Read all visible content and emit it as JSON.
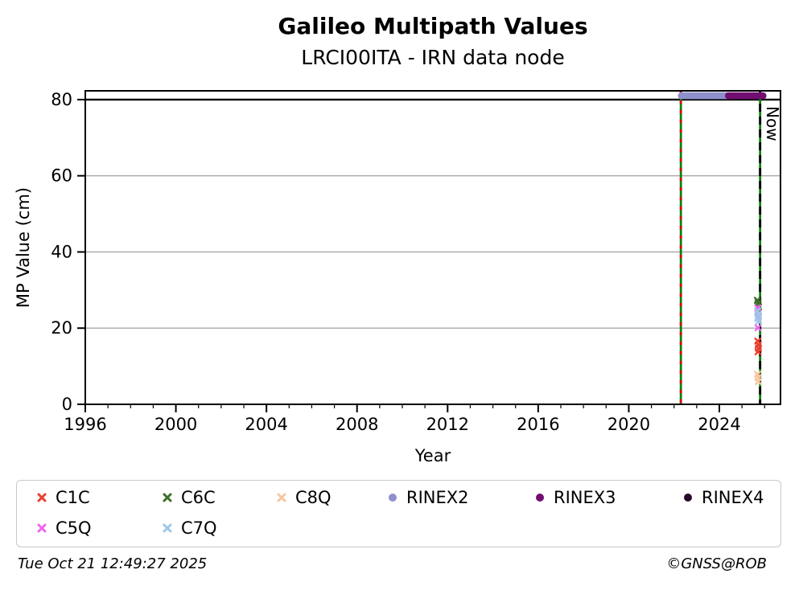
{
  "title": "Galileo Multipath Values",
  "subtitle": "LRCI00ITA - IRN data node",
  "footer": {
    "timestamp": "Tue Oct 21 12:49:27 2025",
    "copyright": "©GNSS@ROB"
  },
  "chart_data": {
    "type": "scatter",
    "title": "Galileo Multipath Values",
    "subtitle": "LRCI00ITA - IRN data node",
    "xlabel": "Year",
    "ylabel": "MP Value (cm)",
    "xlim": [
      1996,
      2026.7
    ],
    "ylim": [
      0,
      82.3
    ],
    "x_major_ticks": [
      1996,
      2000,
      2004,
      2008,
      2012,
      2016,
      2020,
      2024
    ],
    "x_minor_step": 1,
    "y_ticks": [
      0,
      20,
      40,
      60,
      80
    ],
    "grid_y": [
      20,
      40,
      60
    ],
    "grid_color": "#a8a8a8",
    "threshold_line": {
      "y": 80,
      "color": "#000000"
    },
    "event_lines": [
      {
        "x": 2022.3,
        "base_color": "#0e7d0e",
        "dash_color": "#dd0000",
        "label": ""
      },
      {
        "x": 2025.8,
        "base_color": "#0e7d0e",
        "dash_color": "#000000",
        "label": "Now"
      }
    ],
    "now_label": "Now",
    "bands": [
      {
        "name": "RINEX2",
        "y": 81,
        "x_start": 2022.32,
        "x_end": 2024.5,
        "color": "#8f8fcc"
      },
      {
        "name": "RINEX3",
        "y": 81,
        "x_start": 2024.4,
        "x_end": 2025.93,
        "color": "#720d72"
      }
    ],
    "series": [
      {
        "name": "C1C",
        "color": "#e8402f",
        "marker": "x",
        "points": [
          [
            2025.7,
            16.6
          ],
          [
            2025.72,
            15.6
          ],
          [
            2025.73,
            14.7
          ],
          [
            2025.71,
            13.8
          ]
        ]
      },
      {
        "name": "C6C",
        "color": "#3c6e28",
        "marker": "x",
        "points": [
          [
            2025.68,
            27.3
          ],
          [
            2025.71,
            26.6
          ],
          [
            2025.73,
            25.6
          ]
        ]
      },
      {
        "name": "C8Q",
        "color": "#f4c7a1",
        "marker": "x",
        "points": [
          [
            2025.69,
            7.9
          ],
          [
            2025.71,
            7.0
          ],
          [
            2025.72,
            6.0
          ]
        ]
      },
      {
        "name": "RINEX2",
        "color": "#8f8fcc",
        "marker": "circle",
        "points": []
      },
      {
        "name": "RINEX3",
        "color": "#720d72",
        "marker": "circle",
        "points": []
      },
      {
        "name": "RINEX4",
        "color": "#260a28",
        "marker": "circle",
        "points": []
      },
      {
        "name": "C5Q",
        "color": "#ee66ee",
        "marker": "x",
        "points": [
          [
            2025.7,
            25.3
          ],
          [
            2025.72,
            22.9
          ],
          [
            2025.71,
            20.1
          ]
        ]
      },
      {
        "name": "C7Q",
        "color": "#9fc6ea",
        "marker": "x",
        "points": [
          [
            2025.69,
            24.5
          ],
          [
            2025.72,
            23.6
          ],
          [
            2025.7,
            22.6
          ],
          [
            2025.73,
            21.8
          ]
        ]
      }
    ],
    "legend_position": "bottom"
  },
  "legend": {
    "items": [
      {
        "label": "C1C",
        "color": "#e8402f",
        "marker": "x"
      },
      {
        "label": "C6C",
        "color": "#3c6e28",
        "marker": "x"
      },
      {
        "label": "C8Q",
        "color": "#f4c7a1",
        "marker": "x"
      },
      {
        "label": "RINEX2",
        "color": "#8f8fcc",
        "marker": "circle"
      },
      {
        "label": "RINEX3",
        "color": "#720d72",
        "marker": "circle"
      },
      {
        "label": "RINEX4",
        "color": "#260a28",
        "marker": "circle"
      },
      {
        "label": "C5Q",
        "color": "#ee66ee",
        "marker": "x"
      },
      {
        "label": "C7Q",
        "color": "#9fc6ea",
        "marker": "x"
      }
    ]
  }
}
